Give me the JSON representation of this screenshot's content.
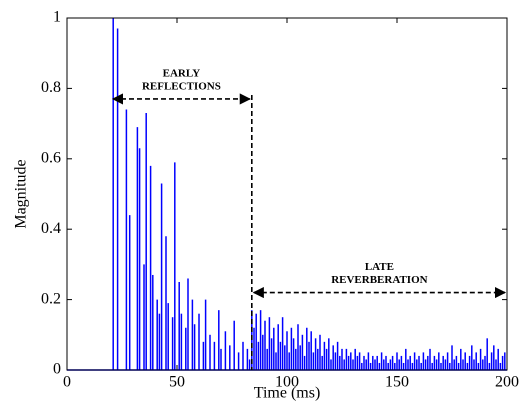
{
  "chart_data": {
    "type": "impulse",
    "xlabel": "Time (ms)",
    "ylabel": "Magnitude",
    "color": "#0000ff",
    "xlim": [
      0,
      200
    ],
    "ylim": [
      0,
      1
    ],
    "xticks": [
      0,
      50,
      100,
      150,
      200
    ],
    "yticks": [
      0,
      0.2,
      0.4,
      0.6,
      0.8,
      1
    ],
    "x": [
      21,
      23,
      27,
      28.5,
      32,
      33,
      35,
      36,
      38,
      39,
      41,
      42,
      43,
      45,
      46,
      48,
      49,
      51,
      52,
      54,
      55,
      57,
      58,
      60,
      62,
      63,
      65,
      67,
      69,
      70,
      72,
      74,
      76,
      78,
      80,
      82,
      83,
      84,
      85,
      86,
      87,
      88,
      89,
      90,
      91,
      92,
      93,
      94,
      95,
      96,
      97,
      98,
      99,
      100,
      101,
      102,
      103,
      104,
      105,
      106,
      107,
      108,
      109,
      110,
      111,
      112,
      113,
      114,
      115,
      116,
      117,
      118,
      119,
      120,
      121,
      122,
      123,
      124,
      125,
      126,
      127,
      128,
      129,
      130,
      131,
      132,
      133,
      134,
      135,
      136,
      137,
      138,
      139,
      140,
      141,
      142,
      143,
      144,
      145,
      146,
      147,
      148,
      149,
      150,
      151,
      152,
      153,
      154,
      155,
      156,
      157,
      158,
      159,
      160,
      161,
      162,
      163,
      164,
      165,
      166,
      167,
      168,
      169,
      170,
      171,
      172,
      173,
      174,
      175,
      176,
      177,
      178,
      179,
      180,
      181,
      182,
      183,
      184,
      185,
      186,
      187,
      188,
      189,
      190,
      191,
      192,
      193,
      194,
      195,
      196,
      197,
      198,
      199
    ],
    "values": [
      1.0,
      0.97,
      0.74,
      0.44,
      0.69,
      0.63,
      0.3,
      0.73,
      0.58,
      0.27,
      0.2,
      0.16,
      0.53,
      0.38,
      0.19,
      0.15,
      0.59,
      0.25,
      0.16,
      0.12,
      0.26,
      0.2,
      0.13,
      0.16,
      0.08,
      0.2,
      0.1,
      0.08,
      0.17,
      0.06,
      0.11,
      0.07,
      0.14,
      0.05,
      0.08,
      0.06,
      0.03,
      0.17,
      0.12,
      0.16,
      0.08,
      0.17,
      0.1,
      0.14,
      0.06,
      0.15,
      0.09,
      0.12,
      0.05,
      0.13,
      0.08,
      0.15,
      0.07,
      0.11,
      0.05,
      0.12,
      0.09,
      0.06,
      0.13,
      0.07,
      0.1,
      0.04,
      0.12,
      0.08,
      0.11,
      0.05,
      0.09,
      0.06,
      0.1,
      0.04,
      0.08,
      0.06,
      0.09,
      0.03,
      0.07,
      0.05,
      0.08,
      0.04,
      0.06,
      0.03,
      0.06,
      0.04,
      0.05,
      0.03,
      0.06,
      0.04,
      0.05,
      0.02,
      0.04,
      0.03,
      0.05,
      0.02,
      0.04,
      0.03,
      0.04,
      0.02,
      0.05,
      0.03,
      0.04,
      0.02,
      0.03,
      0.04,
      0.02,
      0.05,
      0.03,
      0.04,
      0.02,
      0.06,
      0.03,
      0.04,
      0.02,
      0.05,
      0.03,
      0.04,
      0.02,
      0.05,
      0.03,
      0.04,
      0.06,
      0.02,
      0.04,
      0.03,
      0.05,
      0.02,
      0.04,
      0.03,
      0.05,
      0.02,
      0.07,
      0.03,
      0.04,
      0.02,
      0.06,
      0.03,
      0.05,
      0.02,
      0.04,
      0.07,
      0.03,
      0.05,
      0.02,
      0.06,
      0.03,
      0.04,
      0.09,
      0.02,
      0.05,
      0.07,
      0.03,
      0.06,
      0.02,
      0.04,
      0.05
    ],
    "annotations": [
      {
        "lines": [
          "EARLY",
          "REFLECTIONS"
        ],
        "x": [
          20,
          84
        ],
        "y": 0.77
      },
      {
        "lines": [
          "LATE",
          "REVERBERATION"
        ],
        "x": [
          84,
          200
        ],
        "y": 0.22
      }
    ]
  }
}
